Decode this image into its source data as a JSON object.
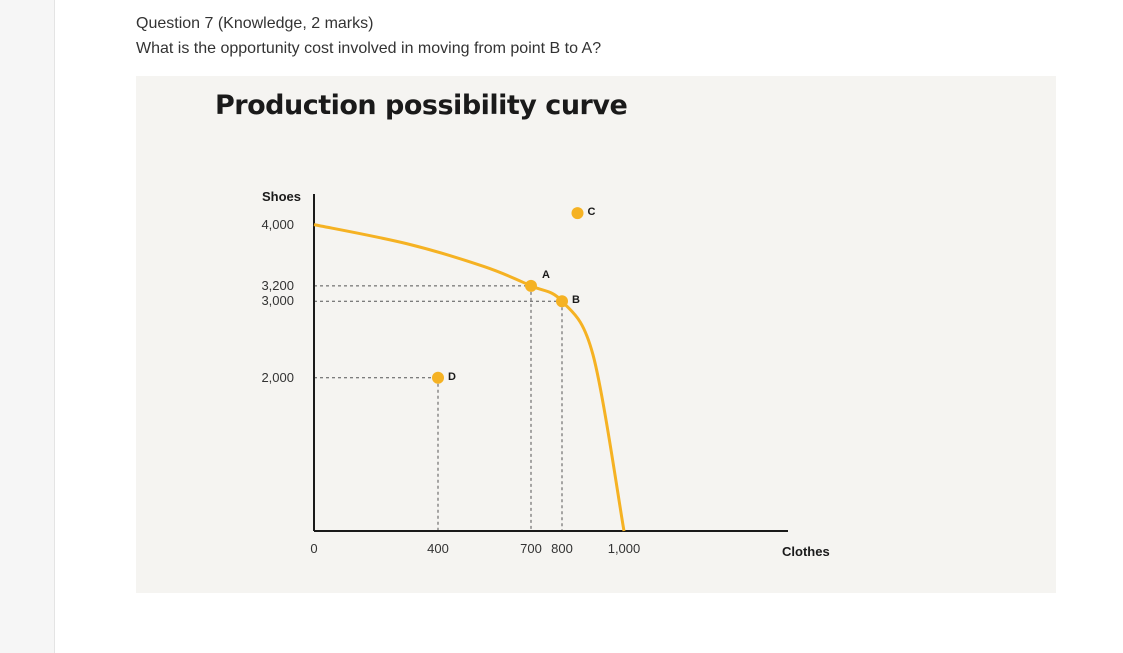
{
  "question": {
    "heading": "Question 7 (Knowledge, 2 marks)",
    "text": "What is the opportunity cost involved in moving from point B to A?"
  },
  "colors": {
    "curve": "#f5b223",
    "axis": "#1a1a1a",
    "panel": "#f5f4f1"
  },
  "chart_data": {
    "type": "line",
    "title": "Production possibility curve",
    "xlabel": "Clothes",
    "ylabel": "Shoes",
    "xlim": [
      0,
      1600
    ],
    "ylim": [
      0,
      6000
    ],
    "x_ticks": [
      {
        "value": 0,
        "label": "0"
      },
      {
        "value": 400,
        "label": "400"
      },
      {
        "value": 700,
        "label": "700"
      },
      {
        "value": 800,
        "label": "800"
      },
      {
        "value": 1000,
        "label": "1,000"
      }
    ],
    "y_ticks": [
      {
        "value": 4000,
        "label": "4,000"
      },
      {
        "value": 3200,
        "label": "3,200"
      },
      {
        "value": 3000,
        "label": "3,000"
      },
      {
        "value": 2000,
        "label": "2,000"
      }
    ],
    "curve": [
      [
        0,
        4000
      ],
      [
        300,
        3750
      ],
      [
        550,
        3450
      ],
      [
        700,
        3200
      ],
      [
        800,
        3000
      ],
      [
        900,
        2300
      ],
      [
        1000,
        0
      ]
    ],
    "points": [
      {
        "label": "A",
        "x": 700,
        "y": 3200
      },
      {
        "label": "B",
        "x": 800,
        "y": 3000
      },
      {
        "label": "C",
        "x": 850,
        "y": 4150
      },
      {
        "label": "D",
        "x": 400,
        "y": 2000
      }
    ]
  }
}
